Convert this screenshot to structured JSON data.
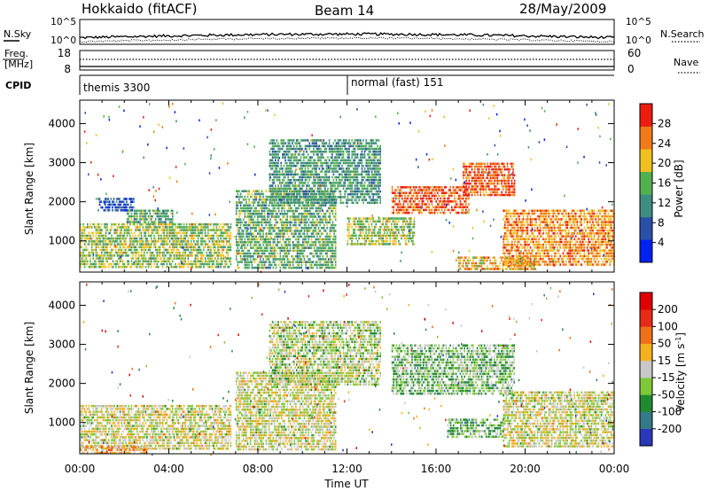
{
  "header": {
    "station": "Hokkaido (fitACF)",
    "beam": "Beam 14",
    "date": "28/May/2009"
  },
  "noise_panel": {
    "left_label": "N.Sky",
    "right_label": "N.Search",
    "left_ticks": [
      "10^5",
      "10^0"
    ],
    "right_ticks": [
      "10^5",
      "10^0"
    ]
  },
  "freq_panel": {
    "left_label_1": "Freq.",
    "left_label_2": "[MHz]",
    "right_label": "Nave",
    "left_ticks": [
      "18",
      "8"
    ],
    "right_ticks": [
      "60",
      "0"
    ]
  },
  "cpid_panel": {
    "label": "CPID",
    "segments": [
      {
        "text": "themis 3300",
        "start_hour": 0,
        "end_hour": 12
      },
      {
        "text": "normal (fast) 151",
        "start_hour": 12,
        "end_hour": 24
      }
    ]
  },
  "chart_data": [
    {
      "type": "heatmap",
      "name": "power",
      "ylabel": "Slant Range [km]",
      "xlabel": "",
      "xlim": [
        0,
        24
      ],
      "ylim": [
        200,
        4600
      ],
      "yticks": [
        "1000",
        "2000",
        "3000",
        "4000"
      ],
      "colorbar": {
        "label": "Power [dB]",
        "ticks": [
          "4",
          "8",
          "12",
          "16",
          "20",
          "24",
          "28"
        ],
        "range": [
          0,
          32
        ],
        "colors": [
          "#0022ee",
          "#2a50a8",
          "#3f8c80",
          "#52b050",
          "#f0c020",
          "#f07a18",
          "#ee1c10"
        ]
      },
      "bands": [
        {
          "t0": 0,
          "t1": 6.8,
          "r0": 300,
          "r1": 1450,
          "level": 0.55
        },
        {
          "t0": 2.1,
          "t1": 4.2,
          "r0": 1450,
          "r1": 1800,
          "level": 0.45
        },
        {
          "t0": 0.8,
          "t1": 2.4,
          "r0": 1800,
          "r1": 2100,
          "level": 0.2
        },
        {
          "t0": 7.0,
          "t1": 11.5,
          "r0": 300,
          "r1": 2300,
          "level": 0.45
        },
        {
          "t0": 8.5,
          "t1": 13.5,
          "r0": 2000,
          "r1": 3600,
          "level": 0.4
        },
        {
          "t0": 14.0,
          "t1": 17.5,
          "r0": 1700,
          "r1": 2400,
          "level": 0.85
        },
        {
          "t0": 17.2,
          "t1": 19.5,
          "r0": 2200,
          "r1": 3000,
          "level": 0.85
        },
        {
          "t0": 19.0,
          "t1": 24,
          "r0": 400,
          "r1": 1800,
          "level": 0.75
        },
        {
          "t0": 12.0,
          "t1": 15.0,
          "r0": 900,
          "r1": 1600,
          "level": 0.55
        },
        {
          "t0": 17.0,
          "t1": 20.5,
          "r0": 250,
          "r1": 600,
          "level": 0.7
        }
      ]
    },
    {
      "type": "heatmap",
      "name": "velocity",
      "ylabel": "Slant Range [km]",
      "xlabel": "Time UT",
      "xlim": [
        0,
        24
      ],
      "ylim": [
        200,
        4600
      ],
      "yticks": [
        "1000",
        "2000",
        "3000",
        "4000"
      ],
      "xticks": [
        "00:00",
        "04:00",
        "08:00",
        "12:00",
        "16:00",
        "20:00",
        "00:00"
      ],
      "colorbar": {
        "label": "Velocity [m s",
        "label_sup": "-1",
        "label_end": "]",
        "ticks": [
          "200",
          "100",
          "50",
          "15",
          "-15",
          "-50",
          "-100",
          "-200"
        ],
        "colors": [
          "#2838b8",
          "#357a88",
          "#1f8a30",
          "#7ec838",
          "#c8c8c8",
          "#f5b020",
          "#f07018",
          "#e82a18",
          "#e00000"
        ]
      },
      "bands": [
        {
          "t0": 0,
          "t1": 6.8,
          "r0": 300,
          "r1": 1450,
          "level": 0.5
        },
        {
          "t0": 7.0,
          "t1": 11.5,
          "r0": 300,
          "r1": 2300,
          "level": 0.5
        },
        {
          "t0": 8.5,
          "t1": 13.5,
          "r0": 2000,
          "r1": 3600,
          "level": 0.45
        },
        {
          "t0": 14.0,
          "t1": 19.5,
          "r0": 1700,
          "r1": 3000,
          "level": 0.38
        },
        {
          "t0": 19.0,
          "t1": 24,
          "r0": 400,
          "r1": 1800,
          "level": 0.5
        },
        {
          "t0": 16.5,
          "t1": 19.0,
          "r0": 600,
          "r1": 1100,
          "level": 0.35
        },
        {
          "t0": 0,
          "t1": 3.0,
          "r0": 200,
          "r1": 400,
          "level": 0.62
        }
      ]
    }
  ]
}
